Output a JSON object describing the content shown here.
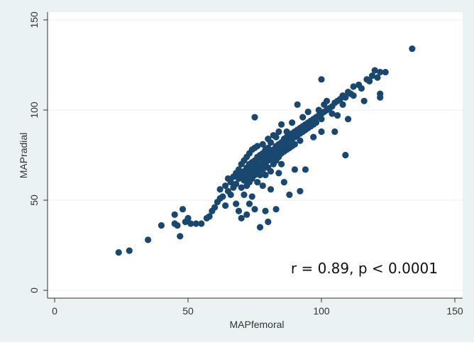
{
  "chart_data": {
    "type": "scatter",
    "title": "",
    "xlabel": "MAPfemoral",
    "ylabel": "MAPradial",
    "xlim": [
      0,
      150
    ],
    "ylim": [
      0,
      150
    ],
    "xticks": [
      0,
      50,
      100,
      150
    ],
    "yticks": [
      0,
      50,
      100,
      150
    ],
    "grid": "horizontal",
    "annotation": "r = 0.89, p < 0.0001",
    "colors": {
      "marker": "#1a476f",
      "background": "#eaf2f3",
      "plot_background": "#ffffff",
      "grid": "#eaf2f3"
    },
    "points": [
      [
        24,
        21
      ],
      [
        28,
        22
      ],
      [
        35,
        28
      ],
      [
        40,
        36
      ],
      [
        45,
        42
      ],
      [
        47,
        30
      ],
      [
        48,
        45
      ],
      [
        45,
        37
      ],
      [
        46,
        36
      ],
      [
        49,
        38
      ],
      [
        50,
        40
      ],
      [
        51,
        37
      ],
      [
        53,
        37
      ],
      [
        55,
        37
      ],
      [
        57,
        40
      ],
      [
        58,
        41
      ],
      [
        59,
        44
      ],
      [
        60,
        46
      ],
      [
        61,
        49
      ],
      [
        62,
        51
      ],
      [
        63,
        52
      ],
      [
        62,
        56
      ],
      [
        64,
        58
      ],
      [
        64,
        47
      ],
      [
        65,
        55
      ],
      [
        65,
        62
      ],
      [
        66,
        60
      ],
      [
        66,
        53
      ],
      [
        67,
        63
      ],
      [
        67,
        57
      ],
      [
        68,
        65
      ],
      [
        68,
        59
      ],
      [
        68,
        48
      ],
      [
        69,
        62
      ],
      [
        69,
        67
      ],
      [
        69,
        44
      ],
      [
        70,
        64
      ],
      [
        70,
        70
      ],
      [
        70,
        57
      ],
      [
        70,
        40
      ],
      [
        71,
        66
      ],
      [
        71,
        61
      ],
      [
        71,
        72
      ],
      [
        71,
        53
      ],
      [
        72,
        68
      ],
      [
        72,
        63
      ],
      [
        72,
        74
      ],
      [
        72,
        58
      ],
      [
        72,
        42
      ],
      [
        73,
        70
      ],
      [
        73,
        65
      ],
      [
        73,
        76
      ],
      [
        73,
        60
      ],
      [
        73,
        48
      ],
      [
        74,
        71
      ],
      [
        74,
        67
      ],
      [
        74,
        62
      ],
      [
        74,
        78
      ],
      [
        74,
        52
      ],
      [
        75,
        72
      ],
      [
        75,
        68
      ],
      [
        75,
        96
      ],
      [
        75,
        64
      ],
      [
        75,
        79
      ],
      [
        75,
        45
      ],
      [
        76,
        74
      ],
      [
        76,
        70
      ],
      [
        76,
        66
      ],
      [
        76,
        60
      ],
      [
        76,
        80
      ],
      [
        77,
        73
      ],
      [
        77,
        69
      ],
      [
        77,
        75
      ],
      [
        77,
        64
      ],
      [
        77,
        35
      ],
      [
        78,
        76
      ],
      [
        78,
        72
      ],
      [
        78,
        67
      ],
      [
        78,
        81
      ],
      [
        78,
        58
      ],
      [
        79,
        74
      ],
      [
        79,
        70
      ],
      [
        79,
        78
      ],
      [
        79,
        64
      ],
      [
        79,
        44
      ],
      [
        80,
        75
      ],
      [
        80,
        72
      ],
      [
        80,
        79
      ],
      [
        80,
        68
      ],
      [
        80,
        84
      ],
      [
        80,
        38
      ],
      [
        81,
        77
      ],
      [
        81,
        73
      ],
      [
        81,
        82
      ],
      [
        81,
        66
      ],
      [
        81,
        56
      ],
      [
        82,
        78
      ],
      [
        82,
        75
      ],
      [
        82,
        70
      ],
      [
        82,
        86
      ],
      [
        83,
        80
      ],
      [
        83,
        76
      ],
      [
        83,
        72
      ],
      [
        83,
        85
      ],
      [
        83,
        45
      ],
      [
        84,
        81
      ],
      [
        84,
        78
      ],
      [
        84,
        74
      ],
      [
        84,
        88
      ],
      [
        84,
        65
      ],
      [
        85,
        82
      ],
      [
        85,
        79
      ],
      [
        85,
        76
      ],
      [
        85,
        70
      ],
      [
        85,
        92
      ],
      [
        86,
        84
      ],
      [
        86,
        80
      ],
      [
        86,
        77
      ],
      [
        86,
        60
      ],
      [
        87,
        85
      ],
      [
        87,
        82
      ],
      [
        87,
        78
      ],
      [
        87,
        88
      ],
      [
        88,
        86
      ],
      [
        88,
        83
      ],
      [
        88,
        79
      ],
      [
        88,
        53
      ],
      [
        89,
        87
      ],
      [
        89,
        84
      ],
      [
        89,
        80
      ],
      [
        89,
        93
      ],
      [
        90,
        88
      ],
      [
        90,
        85
      ],
      [
        90,
        81
      ],
      [
        90,
        67
      ],
      [
        91,
        89
      ],
      [
        91,
        86
      ],
      [
        91,
        103
      ],
      [
        92,
        90
      ],
      [
        92,
        87
      ],
      [
        92,
        83
      ],
      [
        92,
        55
      ],
      [
        93,
        91
      ],
      [
        93,
        88
      ],
      [
        93,
        96
      ],
      [
        94,
        92
      ],
      [
        94,
        89
      ],
      [
        94,
        67
      ],
      [
        95,
        93
      ],
      [
        95,
        90
      ],
      [
        95,
        99
      ],
      [
        96,
        94
      ],
      [
        96,
        91
      ],
      [
        97,
        95
      ],
      [
        97,
        92
      ],
      [
        97,
        85
      ],
      [
        98,
        96
      ],
      [
        98,
        93
      ],
      [
        99,
        97
      ],
      [
        99,
        100
      ],
      [
        100,
        98
      ],
      [
        100,
        95
      ],
      [
        100,
        117
      ],
      [
        100,
        88
      ],
      [
        101,
        103
      ],
      [
        101,
        99
      ],
      [
        102,
        100
      ],
      [
        102,
        105
      ],
      [
        103,
        101
      ],
      [
        104,
        102
      ],
      [
        104,
        98
      ],
      [
        105,
        104
      ],
      [
        105,
        88
      ],
      [
        106,
        97
      ],
      [
        106,
        105
      ],
      [
        107,
        106
      ],
      [
        108,
        108
      ],
      [
        108,
        103
      ],
      [
        109,
        75
      ],
      [
        109,
        107
      ],
      [
        110,
        110
      ],
      [
        110,
        95
      ],
      [
        111,
        109
      ],
      [
        112,
        108
      ],
      [
        112,
        113
      ],
      [
        114,
        114
      ],
      [
        115,
        112
      ],
      [
        116,
        105
      ],
      [
        117,
        117
      ],
      [
        118,
        116
      ],
      [
        119,
        119
      ],
      [
        120,
        122
      ],
      [
        121,
        118
      ],
      [
        122,
        121
      ],
      [
        122,
        109
      ],
      [
        122,
        107
      ],
      [
        124,
        121
      ],
      [
        134,
        134
      ]
    ]
  }
}
